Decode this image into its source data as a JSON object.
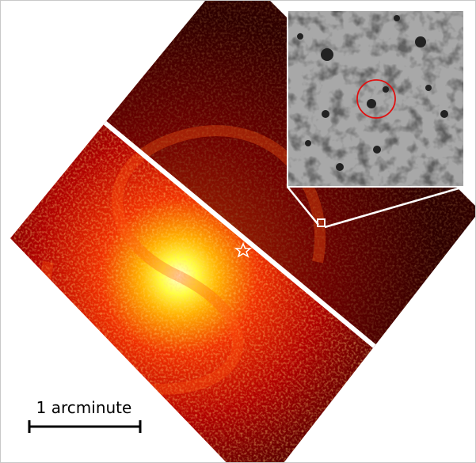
{
  "scale_bar": {
    "label": "1 arcminute"
  }
}
